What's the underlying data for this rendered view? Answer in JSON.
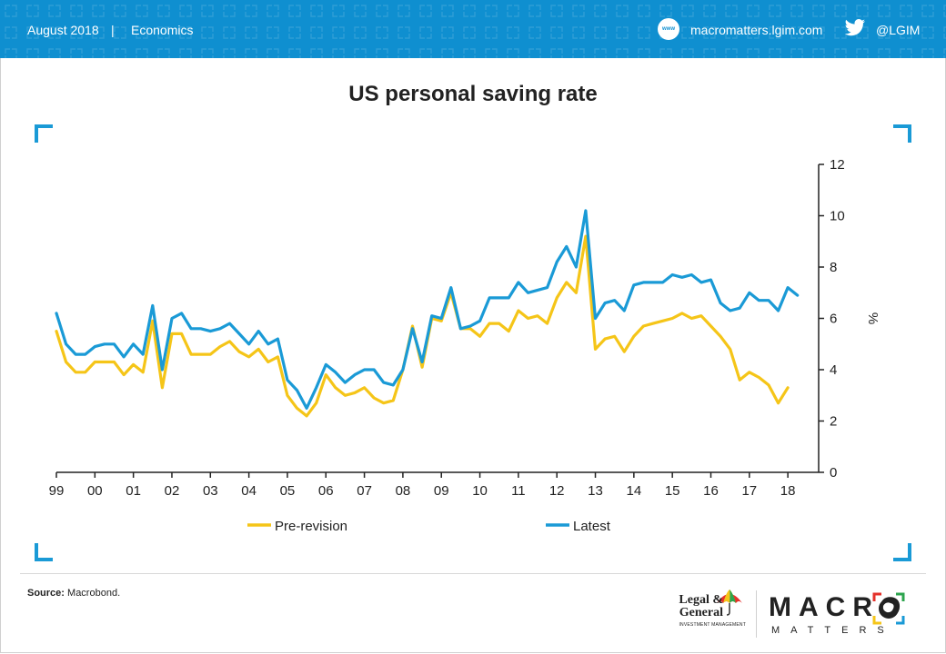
{
  "header": {
    "date": "August 2018",
    "separator": "|",
    "section": "Economics",
    "website_icon": "www-icon",
    "website_icon_text": "www",
    "website": "macromatters.lgim.com",
    "social_icon": "twitter-icon",
    "social_handle": "@LGIM"
  },
  "colors": {
    "banner": "#0f8fd0",
    "accent": "#1a9ad6",
    "pre_revision": "#f5c518",
    "latest": "#1a9ad6"
  },
  "chart_data": {
    "type": "line",
    "title": "US personal saving rate",
    "ylabel": "%",
    "ylim": [
      0,
      12
    ],
    "yticks": [
      0,
      2,
      4,
      6,
      8,
      10,
      12
    ],
    "xlim": [
      1999.0,
      2018.8
    ],
    "xticks": [
      {
        "year": 1999,
        "label": "99"
      },
      {
        "year": 2000,
        "label": "00"
      },
      {
        "year": 2001,
        "label": "01"
      },
      {
        "year": 2002,
        "label": "02"
      },
      {
        "year": 2003,
        "label": "03"
      },
      {
        "year": 2004,
        "label": "04"
      },
      {
        "year": 2005,
        "label": "05"
      },
      {
        "year": 2006,
        "label": "06"
      },
      {
        "year": 2007,
        "label": "07"
      },
      {
        "year": 2008,
        "label": "08"
      },
      {
        "year": 2009,
        "label": "09"
      },
      {
        "year": 2010,
        "label": "10"
      },
      {
        "year": 2011,
        "label": "11"
      },
      {
        "year": 2012,
        "label": "12"
      },
      {
        "year": 2013,
        "label": "13"
      },
      {
        "year": 2014,
        "label": "14"
      },
      {
        "year": 2015,
        "label": "15"
      },
      {
        "year": 2016,
        "label": "16"
      },
      {
        "year": 2017,
        "label": "17"
      },
      {
        "year": 2018,
        "label": "18"
      }
    ],
    "legend_position": "bottom",
    "grid": false,
    "series": [
      {
        "name": "Pre-revision",
        "color": "#f5c518",
        "points": [
          [
            1999.0,
            5.5
          ],
          [
            1999.25,
            4.3
          ],
          [
            1999.5,
            3.9
          ],
          [
            1999.75,
            3.9
          ],
          [
            2000.0,
            4.3
          ],
          [
            2000.25,
            4.3
          ],
          [
            2000.5,
            4.3
          ],
          [
            2000.75,
            3.8
          ],
          [
            2001.0,
            4.2
          ],
          [
            2001.25,
            3.9
          ],
          [
            2001.5,
            5.9
          ],
          [
            2001.75,
            3.3
          ],
          [
            2002.0,
            5.4
          ],
          [
            2002.25,
            5.4
          ],
          [
            2002.5,
            4.6
          ],
          [
            2002.75,
            4.6
          ],
          [
            2003.0,
            4.6
          ],
          [
            2003.25,
            4.9
          ],
          [
            2003.5,
            5.1
          ],
          [
            2003.75,
            4.7
          ],
          [
            2004.0,
            4.5
          ],
          [
            2004.25,
            4.8
          ],
          [
            2004.5,
            4.3
          ],
          [
            2004.75,
            4.5
          ],
          [
            2005.0,
            3.0
          ],
          [
            2005.25,
            2.5
          ],
          [
            2005.5,
            2.2
          ],
          [
            2005.75,
            2.7
          ],
          [
            2006.0,
            3.8
          ],
          [
            2006.25,
            3.3
          ],
          [
            2006.5,
            3.0
          ],
          [
            2006.75,
            3.1
          ],
          [
            2007.0,
            3.3
          ],
          [
            2007.25,
            2.9
          ],
          [
            2007.5,
            2.7
          ],
          [
            2007.75,
            2.8
          ],
          [
            2008.0,
            4.0
          ],
          [
            2008.25,
            5.7
          ],
          [
            2008.5,
            4.1
          ],
          [
            2008.75,
            6.0
          ],
          [
            2009.0,
            5.9
          ],
          [
            2009.25,
            7.0
          ],
          [
            2009.5,
            5.6
          ],
          [
            2009.75,
            5.6
          ],
          [
            2010.0,
            5.3
          ],
          [
            2010.25,
            5.8
          ],
          [
            2010.5,
            5.8
          ],
          [
            2010.75,
            5.5
          ],
          [
            2011.0,
            6.3
          ],
          [
            2011.25,
            6.0
          ],
          [
            2011.5,
            6.1
          ],
          [
            2011.75,
            5.8
          ],
          [
            2012.0,
            6.8
          ],
          [
            2012.25,
            7.4
          ],
          [
            2012.5,
            7.0
          ],
          [
            2012.75,
            9.2
          ],
          [
            2013.0,
            4.8
          ],
          [
            2013.25,
            5.2
          ],
          [
            2013.5,
            5.3
          ],
          [
            2013.75,
            4.7
          ],
          [
            2014.0,
            5.3
          ],
          [
            2014.25,
            5.7
          ],
          [
            2014.5,
            5.8
          ],
          [
            2014.75,
            5.9
          ],
          [
            2015.0,
            6.0
          ],
          [
            2015.25,
            6.2
          ],
          [
            2015.5,
            6.0
          ],
          [
            2015.75,
            6.1
          ],
          [
            2016.0,
            5.7
          ],
          [
            2016.25,
            5.3
          ],
          [
            2016.5,
            4.8
          ],
          [
            2016.75,
            3.6
          ],
          [
            2017.0,
            3.9
          ],
          [
            2017.25,
            3.7
          ],
          [
            2017.5,
            3.4
          ],
          [
            2017.75,
            2.7
          ],
          [
            2018.0,
            3.3
          ]
        ]
      },
      {
        "name": "Latest",
        "color": "#1a9ad6",
        "points": [
          [
            1999.0,
            6.2
          ],
          [
            1999.25,
            5.0
          ],
          [
            1999.5,
            4.6
          ],
          [
            1999.75,
            4.6
          ],
          [
            2000.0,
            4.9
          ],
          [
            2000.25,
            5.0
          ],
          [
            2000.5,
            5.0
          ],
          [
            2000.75,
            4.5
          ],
          [
            2001.0,
            5.0
          ],
          [
            2001.25,
            4.6
          ],
          [
            2001.5,
            6.5
          ],
          [
            2001.75,
            4.0
          ],
          [
            2002.0,
            6.0
          ],
          [
            2002.25,
            6.2
          ],
          [
            2002.5,
            5.6
          ],
          [
            2002.75,
            5.6
          ],
          [
            2003.0,
            5.5
          ],
          [
            2003.25,
            5.6
          ],
          [
            2003.5,
            5.8
          ],
          [
            2003.75,
            5.4
          ],
          [
            2004.0,
            5.0
          ],
          [
            2004.25,
            5.5
          ],
          [
            2004.5,
            5.0
          ],
          [
            2004.75,
            5.2
          ],
          [
            2005.0,
            3.6
          ],
          [
            2005.25,
            3.2
          ],
          [
            2005.5,
            2.5
          ],
          [
            2005.75,
            3.3
          ],
          [
            2006.0,
            4.2
          ],
          [
            2006.25,
            3.9
          ],
          [
            2006.5,
            3.5
          ],
          [
            2006.75,
            3.8
          ],
          [
            2007.0,
            4.0
          ],
          [
            2007.25,
            4.0
          ],
          [
            2007.5,
            3.5
          ],
          [
            2007.75,
            3.4
          ],
          [
            2008.0,
            4.0
          ],
          [
            2008.25,
            5.6
          ],
          [
            2008.5,
            4.3
          ],
          [
            2008.75,
            6.1
          ],
          [
            2009.0,
            6.0
          ],
          [
            2009.25,
            7.2
          ],
          [
            2009.5,
            5.6
          ],
          [
            2009.75,
            5.7
          ],
          [
            2010.0,
            5.9
          ],
          [
            2010.25,
            6.8
          ],
          [
            2010.5,
            6.8
          ],
          [
            2010.75,
            6.8
          ],
          [
            2011.0,
            7.4
          ],
          [
            2011.25,
            7.0
          ],
          [
            2011.5,
            7.1
          ],
          [
            2011.75,
            7.2
          ],
          [
            2012.0,
            8.2
          ],
          [
            2012.25,
            8.8
          ],
          [
            2012.5,
            8.0
          ],
          [
            2012.75,
            10.2
          ],
          [
            2013.0,
            6.0
          ],
          [
            2013.25,
            6.6
          ],
          [
            2013.5,
            6.7
          ],
          [
            2013.75,
            6.3
          ],
          [
            2014.0,
            7.3
          ],
          [
            2014.25,
            7.4
          ],
          [
            2014.5,
            7.4
          ],
          [
            2014.75,
            7.4
          ],
          [
            2015.0,
            7.7
          ],
          [
            2015.25,
            7.6
          ],
          [
            2015.5,
            7.7
          ],
          [
            2015.75,
            7.4
          ],
          [
            2016.0,
            7.5
          ],
          [
            2016.25,
            6.6
          ],
          [
            2016.5,
            6.3
          ],
          [
            2016.75,
            6.4
          ],
          [
            2017.0,
            7.0
          ],
          [
            2017.25,
            6.7
          ],
          [
            2017.5,
            6.7
          ],
          [
            2017.75,
            6.3
          ],
          [
            2018.0,
            7.2
          ],
          [
            2018.25,
            6.9
          ]
        ]
      }
    ]
  },
  "footer": {
    "source_label": "Source:",
    "source_text": "Macrobond.",
    "lg_line1": "Legal &",
    "lg_line2": "General",
    "lg_sub": "INVESTMENT MANAGEMENT",
    "lg_icon": "umbrella-logo-icon",
    "macro_word": "MACRO",
    "matters_word": "MATTERS",
    "macro_icon": "europe-map-icon"
  }
}
